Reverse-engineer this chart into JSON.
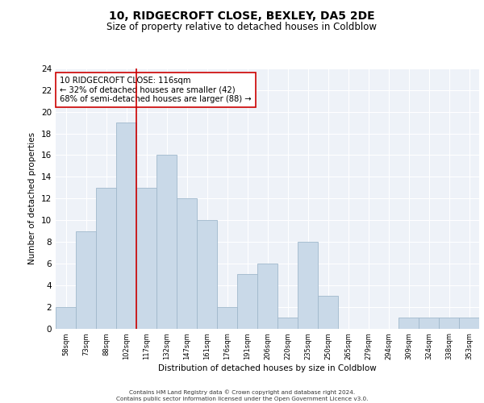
{
  "title1": "10, RIDGECROFT CLOSE, BEXLEY, DA5 2DE",
  "title2": "Size of property relative to detached houses in Coldblow",
  "xlabel": "Distribution of detached houses by size in Coldblow",
  "ylabel": "Number of detached properties",
  "categories": [
    "58sqm",
    "73sqm",
    "88sqm",
    "102sqm",
    "117sqm",
    "132sqm",
    "147sqm",
    "161sqm",
    "176sqm",
    "191sqm",
    "206sqm",
    "220sqm",
    "235sqm",
    "250sqm",
    "265sqm",
    "279sqm",
    "294sqm",
    "309sqm",
    "324sqm",
    "338sqm",
    "353sqm"
  ],
  "values": [
    2,
    9,
    13,
    19,
    13,
    16,
    12,
    10,
    2,
    5,
    6,
    1,
    8,
    3,
    0,
    0,
    0,
    1,
    1,
    1,
    1
  ],
  "bar_color": "#c9d9e8",
  "bar_edge_color": "#a0b8cc",
  "vline_x": 4.0,
  "vline_color": "#cc0000",
  "annotation_text": "10 RIDGECROFT CLOSE: 116sqm\n← 32% of detached houses are smaller (42)\n68% of semi-detached houses are larger (88) →",
  "annotation_box_color": "#ffffff",
  "annotation_box_edge_color": "#cc0000",
  "ylim": [
    0,
    24
  ],
  "yticks": [
    0,
    2,
    4,
    6,
    8,
    10,
    12,
    14,
    16,
    18,
    20,
    22,
    24
  ],
  "bg_color": "#eef2f8",
  "footer1": "Contains HM Land Registry data © Crown copyright and database right 2024.",
  "footer2": "Contains public sector information licensed under the Open Government Licence v3.0."
}
